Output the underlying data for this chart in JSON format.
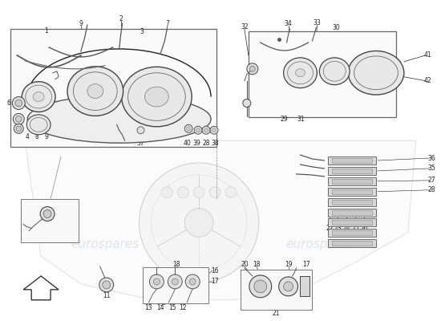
{
  "bg_color": "#ffffff",
  "line_color": "#222222",
  "light_line": "#888888",
  "very_light": "#cccccc",
  "watermark_color": "#aabbcc",
  "watermark_alpha": 0.35,
  "label_fs": 5.5,
  "title_fs": 7.0
}
